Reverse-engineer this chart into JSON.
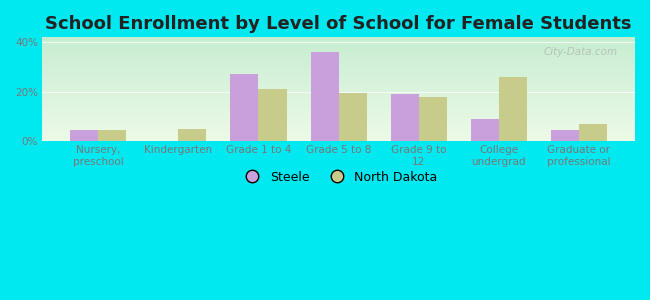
{
  "title": "School Enrollment by Level of School for Female Students",
  "categories": [
    "Nursery,\npreschool",
    "Kindergarten",
    "Grade 1 to 4",
    "Grade 5 to 8",
    "Grade 9 to\n12",
    "College\nundergrad",
    "Graduate or\nprofessional"
  ],
  "steele_values": [
    4.5,
    0,
    27,
    36,
    19,
    9,
    4.5
  ],
  "nd_values": [
    4.5,
    5,
    21,
    19.5,
    18,
    26,
    7
  ],
  "steele_color": "#c9a0dc",
  "nd_color": "#c8cc8a",
  "background_color": "#00e8f0",
  "plot_bg_top_left": "#cdeede",
  "plot_bg_bottom_right": "#eef8e8",
  "ylim": [
    0,
    42
  ],
  "yticks": [
    0,
    20,
    40
  ],
  "ytick_labels": [
    "0%",
    "20%",
    "40%"
  ],
  "bar_width": 0.35,
  "title_fontsize": 13,
  "tick_fontsize": 7.5,
  "legend_fontsize": 9,
  "watermark": "City-Data.com"
}
